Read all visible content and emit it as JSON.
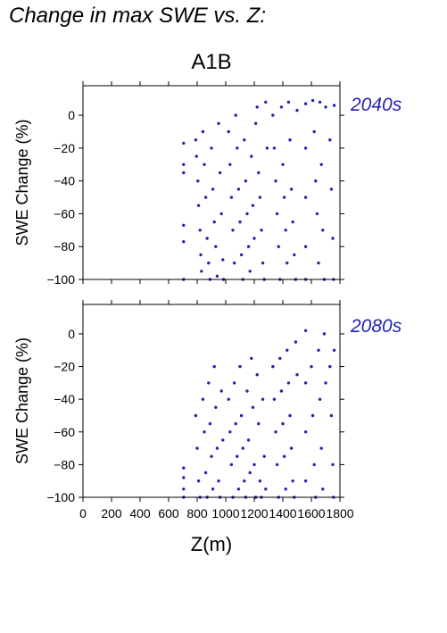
{
  "title": "Change in max SWE vs. Z:",
  "scenario": "A1B",
  "colors": {
    "points": "#2323b4",
    "axis": "#000000",
    "label": "#2323b4"
  },
  "chart_data": [
    {
      "type": "scatter",
      "period": "2040s",
      "ylabel": "SWE Change (%)",
      "xlabel": "",
      "xlim": [
        0,
        1800
      ],
      "ylim": [
        -100,
        18
      ],
      "xticks": [
        0,
        200,
        400,
        600,
        800,
        1000,
        1200,
        1400,
        1600,
        1800
      ],
      "yticks": [
        0,
        -20,
        -40,
        -60,
        -80,
        -100
      ],
      "xtick_labels_shown": false,
      "grid": false,
      "points": [
        [
          705,
          -17
        ],
        [
          705,
          -30
        ],
        [
          705,
          -35
        ],
        [
          705,
          -67
        ],
        [
          705,
          -77
        ],
        [
          705,
          -100
        ],
        [
          790,
          -15
        ],
        [
          795,
          -25
        ],
        [
          805,
          -40
        ],
        [
          810,
          -55
        ],
        [
          820,
          -70
        ],
        [
          825,
          -85
        ],
        [
          830,
          -95
        ],
        [
          840,
          -10
        ],
        [
          850,
          -30
        ],
        [
          860,
          -50
        ],
        [
          870,
          -75
        ],
        [
          880,
          -90
        ],
        [
          890,
          -100
        ],
        [
          900,
          -20
        ],
        [
          910,
          -45
        ],
        [
          920,
          -65
        ],
        [
          930,
          -80
        ],
        [
          940,
          -98
        ],
        [
          950,
          -5
        ],
        [
          960,
          -35
        ],
        [
          970,
          -60
        ],
        [
          980,
          -88
        ],
        [
          985,
          -100
        ],
        [
          1020,
          -10
        ],
        [
          1030,
          -30
        ],
        [
          1040,
          -50
        ],
        [
          1050,
          -70
        ],
        [
          1060,
          -90
        ],
        [
          1070,
          0
        ],
        [
          1080,
          -20
        ],
        [
          1090,
          -45
        ],
        [
          1100,
          -65
        ],
        [
          1110,
          -85
        ],
        [
          1120,
          -100
        ],
        [
          1130,
          -15
        ],
        [
          1140,
          -40
        ],
        [
          1150,
          -60
        ],
        [
          1160,
          -80
        ],
        [
          1170,
          -95
        ],
        [
          1180,
          -25
        ],
        [
          1190,
          -55
        ],
        [
          1200,
          -75
        ],
        [
          1210,
          -5
        ],
        [
          1220,
          5
        ],
        [
          1230,
          -35
        ],
        [
          1240,
          -50
        ],
        [
          1250,
          -70
        ],
        [
          1260,
          -90
        ],
        [
          1270,
          -100
        ],
        [
          1280,
          8
        ],
        [
          1290,
          -20
        ],
        [
          1330,
          0
        ],
        [
          1340,
          -20
        ],
        [
          1350,
          -40
        ],
        [
          1360,
          -60
        ],
        [
          1370,
          -80
        ],
        [
          1380,
          -100
        ],
        [
          1390,
          5
        ],
        [
          1400,
          -30
        ],
        [
          1410,
          -50
        ],
        [
          1420,
          -70
        ],
        [
          1430,
          -90
        ],
        [
          1440,
          8
        ],
        [
          1450,
          -15
        ],
        [
          1460,
          -45
        ],
        [
          1470,
          -65
        ],
        [
          1480,
          -85
        ],
        [
          1490,
          -100
        ],
        [
          1500,
          3
        ],
        [
          1560,
          7
        ],
        [
          1560,
          -20
        ],
        [
          1560,
          -50
        ],
        [
          1560,
          -80
        ],
        [
          1560,
          -100
        ],
        [
          1610,
          9
        ],
        [
          1620,
          -10
        ],
        [
          1630,
          -40
        ],
        [
          1640,
          -60
        ],
        [
          1650,
          -90
        ],
        [
          1660,
          8
        ],
        [
          1670,
          -30
        ],
        [
          1680,
          -70
        ],
        [
          1690,
          -100
        ],
        [
          1700,
          5
        ],
        [
          1730,
          -15
        ],
        [
          1740,
          -45
        ],
        [
          1750,
          -75
        ],
        [
          1755,
          -100
        ],
        [
          1760,
          6
        ]
      ]
    },
    {
      "type": "scatter",
      "period": "2080s",
      "ylabel": "SWE Change (%)",
      "xlabel": "Z(m)",
      "xlim": [
        0,
        1800
      ],
      "ylim": [
        -100,
        18
      ],
      "xticks": [
        0,
        200,
        400,
        600,
        800,
        1000,
        1200,
        1400,
        1600,
        1800
      ],
      "xtick_labels": [
        "0",
        "200",
        "400",
        "600",
        "800",
        "1000",
        "1200",
        "1400",
        "1600",
        "1800"
      ],
      "yticks": [
        0,
        -20,
        -40,
        -60,
        -80,
        -100
      ],
      "grid": false,
      "points": [
        [
          705,
          -82
        ],
        [
          705,
          -88
        ],
        [
          705,
          -95
        ],
        [
          705,
          -100
        ],
        [
          790,
          -50
        ],
        [
          800,
          -70
        ],
        [
          810,
          -90
        ],
        [
          820,
          -100
        ],
        [
          840,
          -40
        ],
        [
          850,
          -60
        ],
        [
          860,
          -85
        ],
        [
          870,
          -100
        ],
        [
          880,
          -30
        ],
        [
          890,
          -55
        ],
        [
          900,
          -75
        ],
        [
          910,
          -95
        ],
        [
          920,
          -20
        ],
        [
          930,
          -45
        ],
        [
          940,
          -70
        ],
        [
          950,
          -90
        ],
        [
          960,
          -100
        ],
        [
          970,
          -35
        ],
        [
          980,
          -65
        ],
        [
          1020,
          -40
        ],
        [
          1030,
          -60
        ],
        [
          1040,
          -80
        ],
        [
          1050,
          -100
        ],
        [
          1060,
          -30
        ],
        [
          1070,
          -55
        ],
        [
          1080,
          -75
        ],
        [
          1090,
          -95
        ],
        [
          1100,
          -20
        ],
        [
          1110,
          -50
        ],
        [
          1120,
          -70
        ],
        [
          1130,
          -90
        ],
        [
          1140,
          -100
        ],
        [
          1150,
          -35
        ],
        [
          1160,
          -65
        ],
        [
          1170,
          -85
        ],
        [
          1180,
          -15
        ],
        [
          1190,
          -45
        ],
        [
          1200,
          -80
        ],
        [
          1210,
          -100
        ],
        [
          1220,
          -25
        ],
        [
          1230,
          -55
        ],
        [
          1240,
          -90
        ],
        [
          1250,
          -100
        ],
        [
          1260,
          -40
        ],
        [
          1270,
          -75
        ],
        [
          1280,
          -95
        ],
        [
          1330,
          -20
        ],
        [
          1340,
          -40
        ],
        [
          1350,
          -60
        ],
        [
          1360,
          -80
        ],
        [
          1370,
          -100
        ],
        [
          1380,
          -15
        ],
        [
          1390,
          -35
        ],
        [
          1400,
          -55
        ],
        [
          1410,
          -75
        ],
        [
          1420,
          -95
        ],
        [
          1430,
          -10
        ],
        [
          1440,
          -30
        ],
        [
          1450,
          -50
        ],
        [
          1460,
          -70
        ],
        [
          1470,
          -90
        ],
        [
          1480,
          -100
        ],
        [
          1490,
          -5
        ],
        [
          1500,
          -25
        ],
        [
          1560,
          2
        ],
        [
          1560,
          -30
        ],
        [
          1560,
          -60
        ],
        [
          1560,
          -90
        ],
        [
          1600,
          -20
        ],
        [
          1610,
          -50
        ],
        [
          1620,
          -80
        ],
        [
          1630,
          -100
        ],
        [
          1650,
          -10
        ],
        [
          1660,
          -40
        ],
        [
          1670,
          -70
        ],
        [
          1680,
          -95
        ],
        [
          1690,
          0
        ],
        [
          1700,
          -30
        ],
        [
          1730,
          -20
        ],
        [
          1740,
          -50
        ],
        [
          1750,
          -80
        ],
        [
          1755,
          -100
        ],
        [
          1760,
          -10
        ]
      ]
    }
  ]
}
